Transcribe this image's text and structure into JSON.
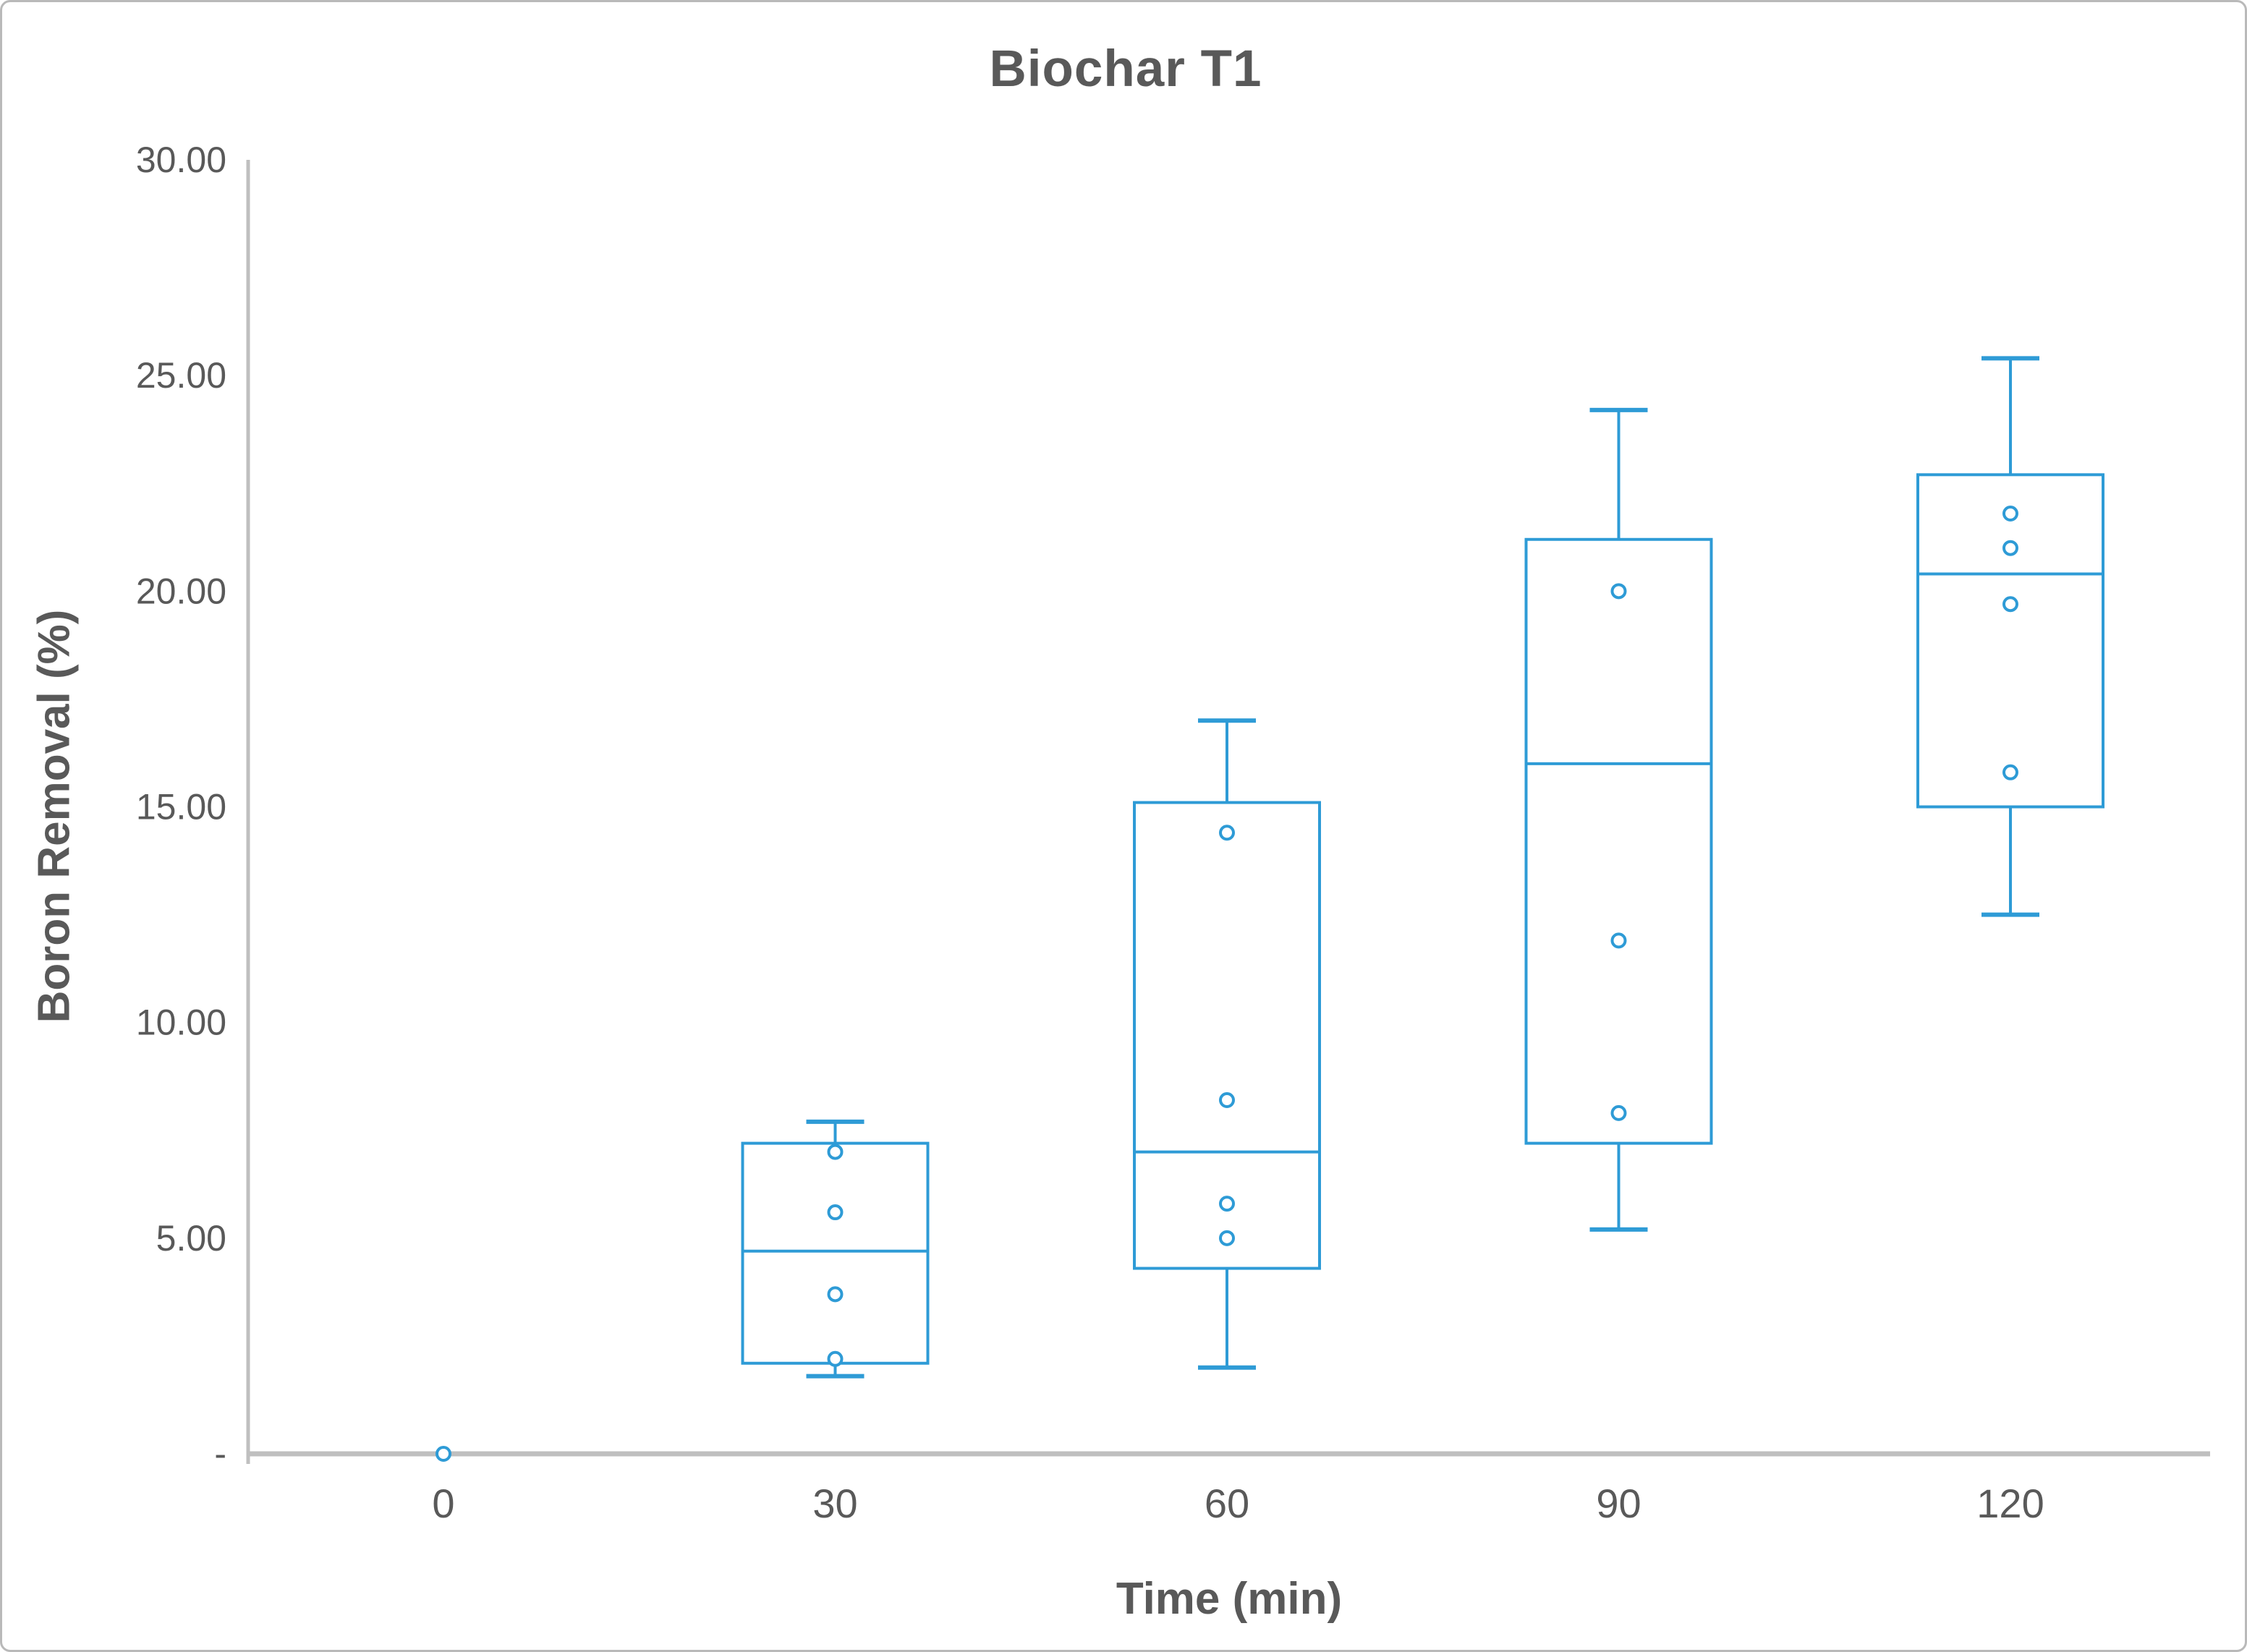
{
  "chart_data": {
    "type": "box",
    "title": "Biochar T1",
    "xlabel": "Time (min)",
    "ylabel": "Boron Removal (%)",
    "categories": [
      "0",
      "30",
      "60",
      "90",
      "120"
    ],
    "y_axis": {
      "min": 0,
      "max": 30,
      "tick_step": 5,
      "ticks": [
        {
          "value": 30,
          "label": "30.00"
        },
        {
          "value": 25,
          "label": "25.00"
        },
        {
          "value": 20,
          "label": "20.00"
        },
        {
          "value": 15,
          "label": "15.00"
        },
        {
          "value": 10,
          "label": "10.00"
        },
        {
          "value": 5,
          "label": "5.00"
        },
        {
          "value": 0,
          "label": "-"
        }
      ]
    },
    "grid": false,
    "legend": false,
    "series": [
      {
        "category": "0",
        "box": null,
        "points": [
          0.0
        ]
      },
      {
        "category": "30",
        "box": {
          "whisker_low": 1.8,
          "q1": 2.1,
          "median": 4.7,
          "q3": 7.2,
          "whisker_high": 7.7
        },
        "points": [
          7.0,
          5.6,
          3.7,
          2.2
        ]
      },
      {
        "category": "60",
        "box": {
          "whisker_low": 2.0,
          "q1": 4.3,
          "median": 7.0,
          "q3": 15.1,
          "whisker_high": 17.0
        },
        "points": [
          14.4,
          8.2,
          5.8,
          5.0
        ]
      },
      {
        "category": "90",
        "box": {
          "whisker_low": 5.2,
          "q1": 7.2,
          "median": 16.0,
          "q3": 21.2,
          "whisker_high": 24.2
        },
        "points": [
          20.0,
          11.9,
          7.9
        ]
      },
      {
        "category": "120",
        "box": {
          "whisker_low": 12.5,
          "q1": 15.0,
          "median": 20.4,
          "q3": 22.7,
          "whisker_high": 25.4
        },
        "points": [
          21.8,
          21.0,
          19.7,
          15.8
        ]
      }
    ],
    "style": {
      "box_color": "#2E9BD6",
      "axis_color": "#BFBFBF",
      "text_color": "#595959",
      "background": "#FFFFFF"
    }
  }
}
